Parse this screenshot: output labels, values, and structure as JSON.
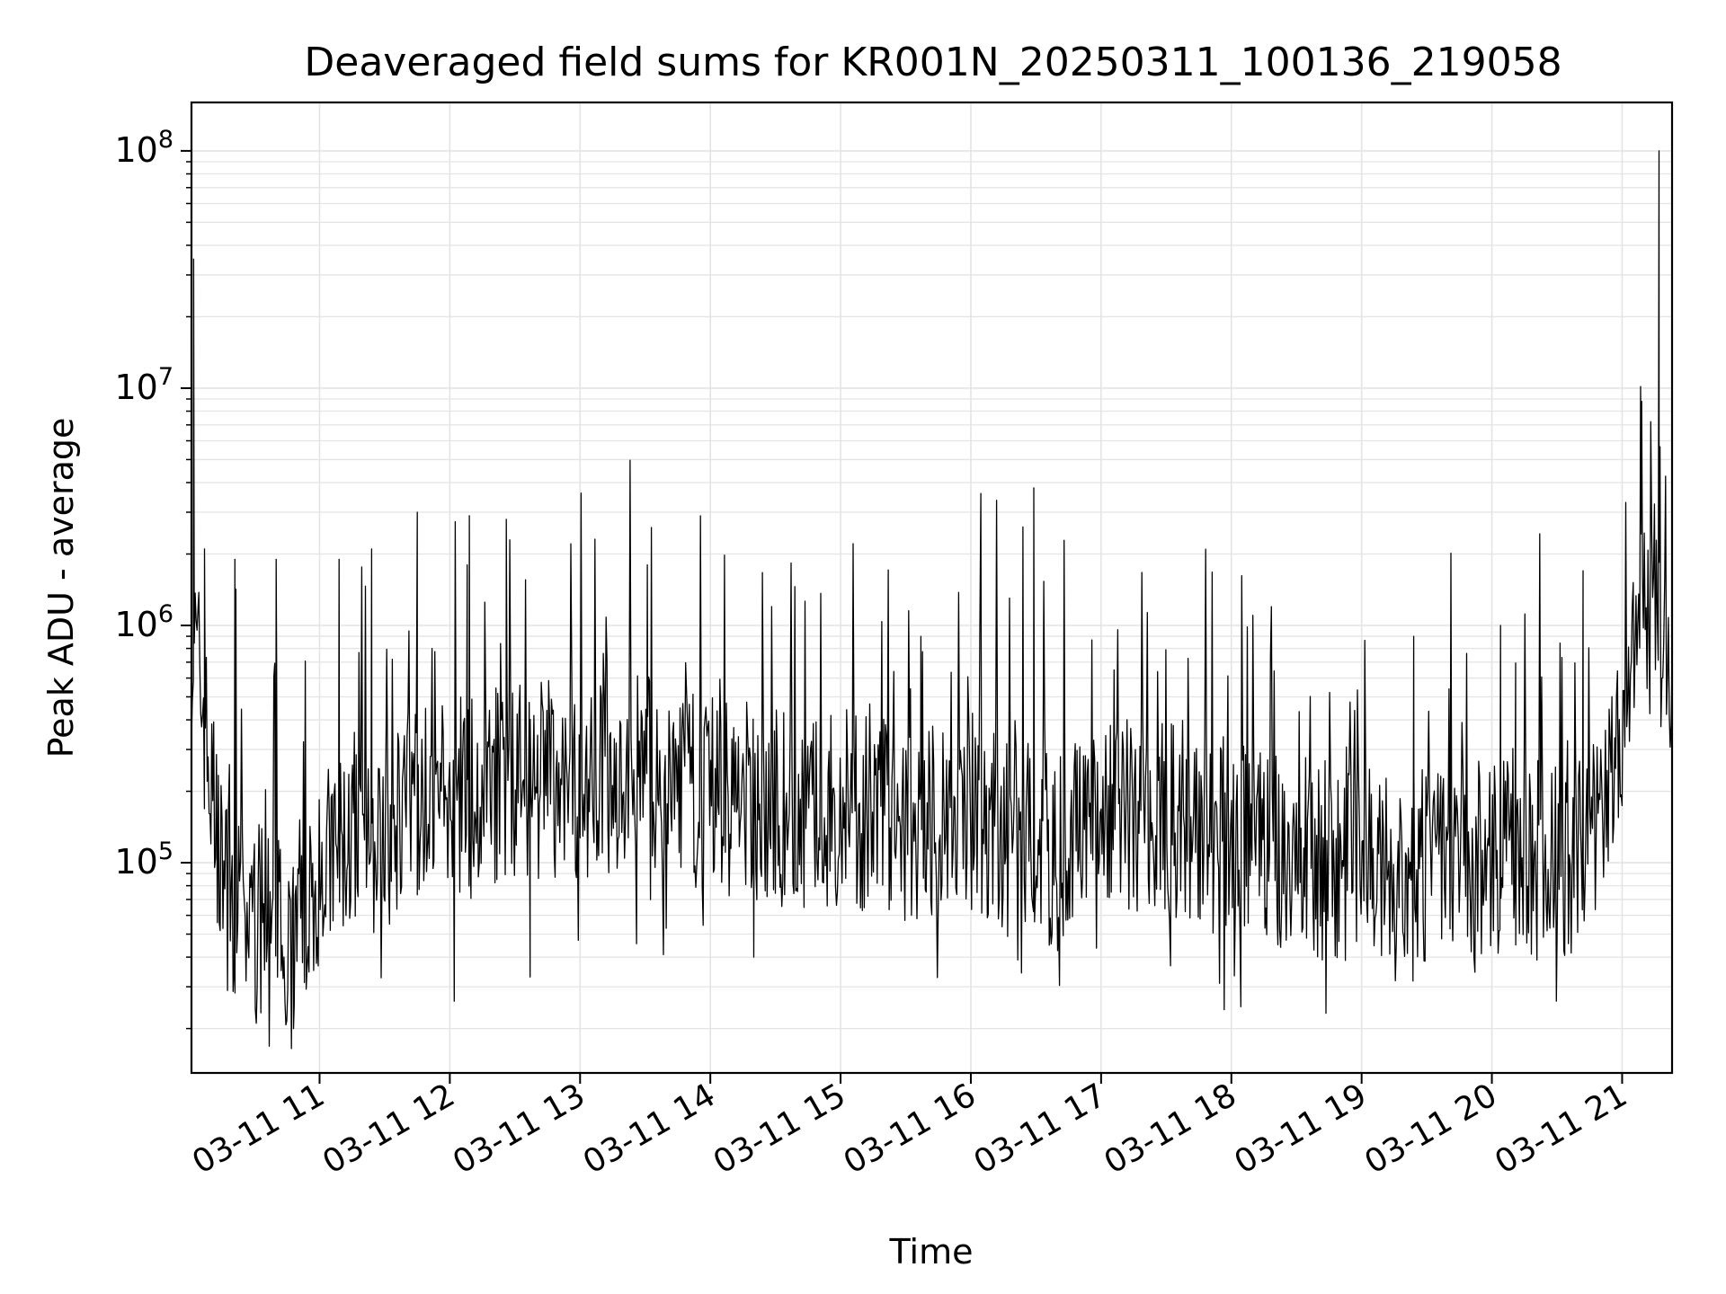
{
  "chart_data": {
    "type": "line",
    "title": "Deaveraged field sums for KR001N_20250311_100136_219058",
    "xlabel": "Time",
    "ylabel": "Peak ADU - average",
    "yscale": "log",
    "grid": true,
    "line_color": "#000000",
    "grid_color": "#e4e4e4",
    "xlim": [
      "03-11 10:01",
      "03-11 21:23"
    ],
    "ylim": [
      13000,
      160000000
    ],
    "x_ticks": [
      {
        "time": "03-11 11:00",
        "label": "03-11 11"
      },
      {
        "time": "03-11 12:00",
        "label": "03-11 12"
      },
      {
        "time": "03-11 13:00",
        "label": "03-11 13"
      },
      {
        "time": "03-11 14:00",
        "label": "03-11 14"
      },
      {
        "time": "03-11 15:00",
        "label": "03-11 15"
      },
      {
        "time": "03-11 16:00",
        "label": "03-11 16"
      },
      {
        "time": "03-11 17:00",
        "label": "03-11 17"
      },
      {
        "time": "03-11 18:00",
        "label": "03-11 18"
      },
      {
        "time": "03-11 19:00",
        "label": "03-11 19"
      },
      {
        "time": "03-11 20:00",
        "label": "03-11 20"
      },
      {
        "time": "03-11 21:00",
        "label": "03-11 21"
      }
    ],
    "y_ticks": [
      {
        "value": 100000,
        "base": "10",
        "exp": "5"
      },
      {
        "value": 1000000,
        "base": "10",
        "exp": "6"
      },
      {
        "value": 10000000,
        "base": "10",
        "exp": "7"
      },
      {
        "value": 100000000,
        "base": "10",
        "exp": "8"
      }
    ],
    "series": [
      {
        "baseline": [
          {
            "t": "03-11 10:01",
            "v": 900000
          },
          {
            "t": "03-11 10:06",
            "v": 500000
          },
          {
            "t": "03-11 10:10",
            "v": 200000
          },
          {
            "t": "03-11 10:16",
            "v": 80000
          },
          {
            "t": "03-11 10:30",
            "v": 55000
          },
          {
            "t": "03-11 10:45",
            "v": 55000
          },
          {
            "t": "03-11 11:00",
            "v": 90000
          },
          {
            "t": "03-11 11:20",
            "v": 140000
          },
          {
            "t": "03-11 11:40",
            "v": 170000
          },
          {
            "t": "03-11 12:00",
            "v": 190000
          },
          {
            "t": "03-11 12:30",
            "v": 220000
          },
          {
            "t": "03-11 13:00",
            "v": 230000
          },
          {
            "t": "03-11 13:30",
            "v": 240000
          },
          {
            "t": "03-11 14:00",
            "v": 200000
          },
          {
            "t": "03-11 14:30",
            "v": 170000
          },
          {
            "t": "03-11 15:00",
            "v": 160000
          },
          {
            "t": "03-11 15:30",
            "v": 150000
          },
          {
            "t": "03-11 16:00",
            "v": 170000
          },
          {
            "t": "03-11 16:15",
            "v": 130000
          },
          {
            "t": "03-11 16:40",
            "v": 110000
          },
          {
            "t": "03-11 17:00",
            "v": 170000
          },
          {
            "t": "03-11 17:30",
            "v": 150000
          },
          {
            "t": "03-11 18:00",
            "v": 125000
          },
          {
            "t": "03-11 18:30",
            "v": 105000
          },
          {
            "t": "03-11 19:00",
            "v": 100000
          },
          {
            "t": "03-11 19:30",
            "v": 100000
          },
          {
            "t": "03-11 20:00",
            "v": 100000
          },
          {
            "t": "03-11 20:30",
            "v": 105000
          },
          {
            "t": "03-11 20:45",
            "v": 110000
          },
          {
            "t": "03-11 20:55",
            "v": 250000
          },
          {
            "t": "03-11 21:00",
            "v": 400000
          },
          {
            "t": "03-11 21:05",
            "v": 1200000
          },
          {
            "t": "03-11 21:15",
            "v": 900000
          },
          {
            "t": "03-11 21:23",
            "v": 700000
          }
        ],
        "spikes": [
          {
            "t": "03-11 10:02",
            "v": 35000000
          },
          {
            "t": "03-11 10:07",
            "v": 2100000
          },
          {
            "t": "03-11 10:21",
            "v": 1900000
          },
          {
            "t": "03-11 10:40",
            "v": 1900000
          },
          {
            "t": "03-11 11:09",
            "v": 1900000
          },
          {
            "t": "03-11 11:24",
            "v": 2100000
          },
          {
            "t": "03-11 11:45",
            "v": 3000000
          },
          {
            "t": "03-11 12:08",
            "v": 1800000
          },
          {
            "t": "03-11 12:09",
            "v": 2900000
          },
          {
            "t": "03-11 12:26",
            "v": 2800000
          },
          {
            "t": "03-11 13:31",
            "v": 1800000
          },
          {
            "t": "03-11 15:37",
            "v": 900000
          },
          {
            "t": "03-11 16:24",
            "v": 2600000
          },
          {
            "t": "03-11 16:29",
            "v": 3800000
          },
          {
            "t": "03-11 19:24",
            "v": 900000
          },
          {
            "t": "03-11 20:04",
            "v": 1000000
          },
          {
            "t": "03-11 20:42",
            "v": 1700000
          },
          {
            "t": "03-11 21:09",
            "v": 8800000
          },
          {
            "t": "03-11 21:17",
            "v": 100000000
          }
        ],
        "dips": [
          {
            "t": "03-11 10:48",
            "v": 20000
          },
          {
            "t": "03-11 12:37",
            "v": 33000
          },
          {
            "t": "03-11 14:20",
            "v": 40000
          },
          {
            "t": "03-11 19:42",
            "v": 47000
          },
          {
            "t": "03-11 20:11",
            "v": 45000
          }
        ]
      }
    ]
  }
}
